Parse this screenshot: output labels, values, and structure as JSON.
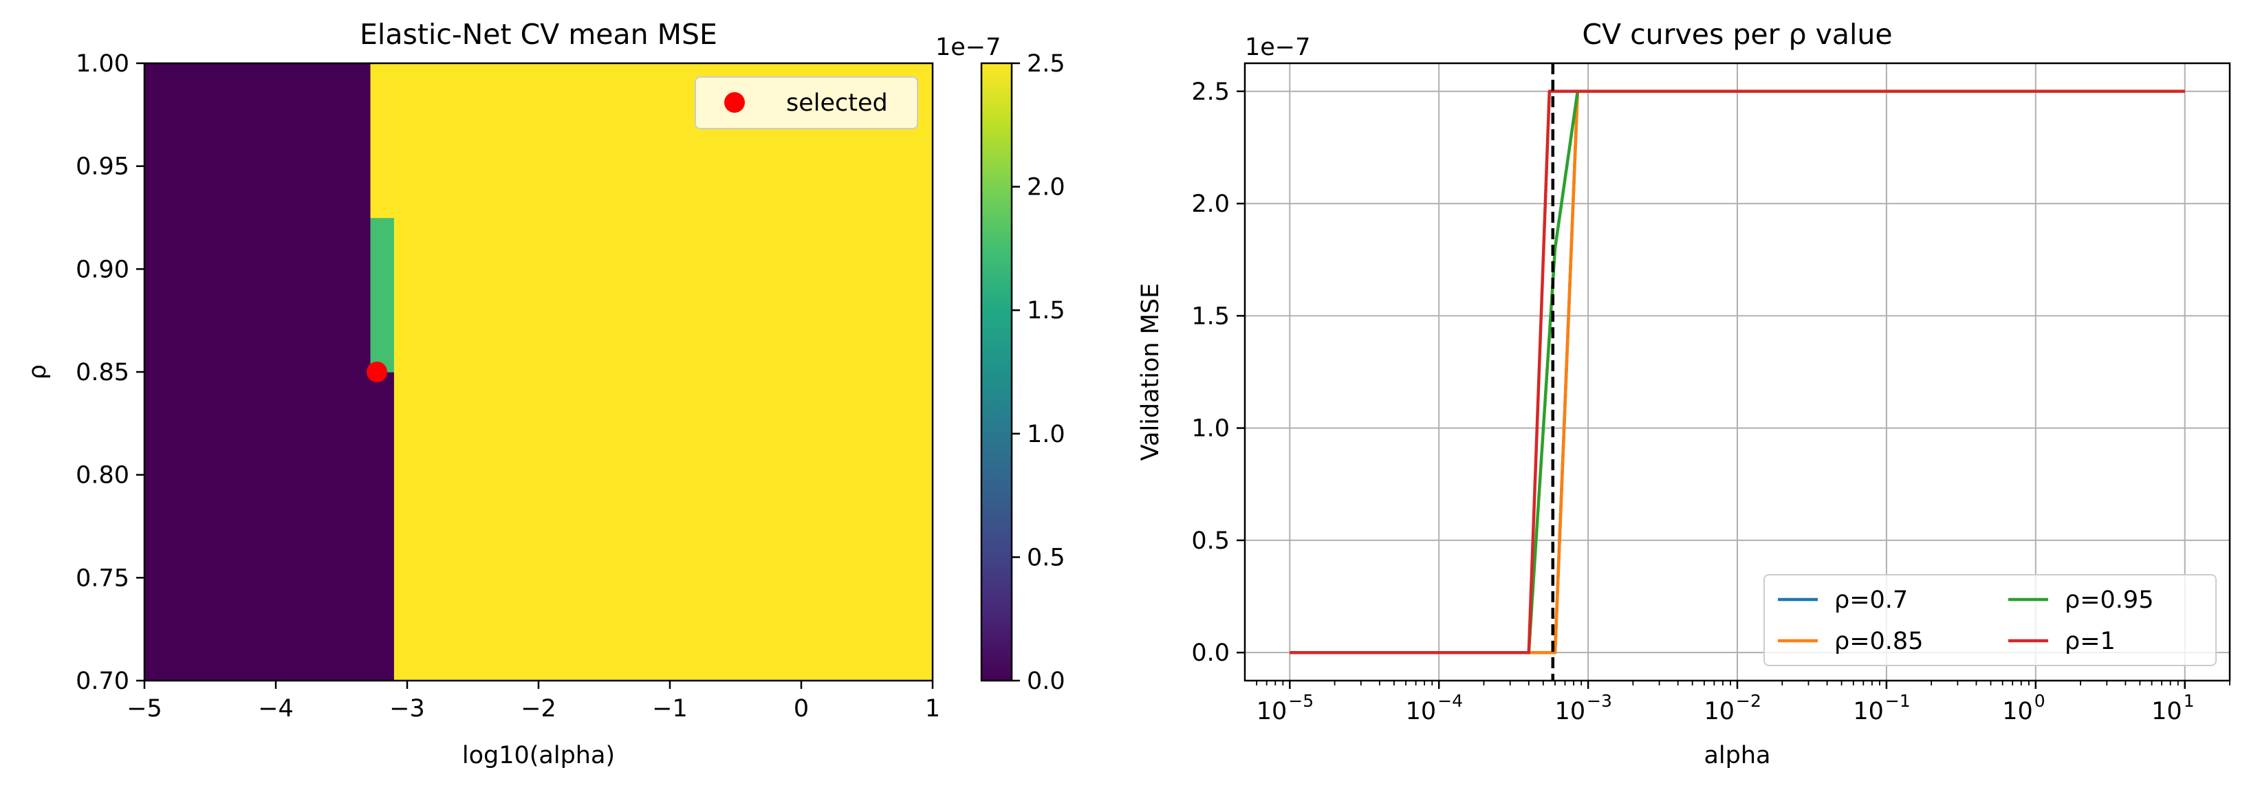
{
  "colors": {
    "viridis_low": "#440154",
    "viridis_mid": "#21918c",
    "viridis_high": "#fde725",
    "selected_marker": "#ff0000",
    "series": [
      "#1f77b4",
      "#ff7f0e",
      "#2ca02c",
      "#d62728"
    ],
    "vline": "#000000",
    "grid": "#b0b0b0"
  },
  "chart_data": [
    {
      "type": "heatmap",
      "title": "Elastic-Net CV mean MSE",
      "xlabel": "log10(alpha)",
      "ylabel": "ρ",
      "xlim": [
        -5,
        1
      ],
      "ylim": [
        0.7,
        1.0
      ],
      "x_ticks": [
        -5,
        -4,
        -3,
        -2,
        -1,
        0,
        1
      ],
      "x_tick_labels": [
        "−5",
        "−4",
        "−3",
        "−2",
        "−1",
        "0",
        "1"
      ],
      "y_ticks": [
        0.7,
        0.75,
        0.8,
        0.85,
        0.9,
        0.95,
        1.0
      ],
      "y_tick_labels": [
        "0.70",
        "0.75",
        "0.80",
        "0.85",
        "0.90",
        "0.95",
        "1.00"
      ],
      "cells": [
        {
          "x0": -5,
          "x1": -3.28,
          "y0": 0.7,
          "y1": 1.0,
          "value": 0.0
        },
        {
          "x0": -3.28,
          "x1": -3.1,
          "y0": 0.7,
          "y1": 0.85,
          "value": 0.0
        },
        {
          "x0": -3.28,
          "x1": -3.1,
          "y0": 0.85,
          "y1": 0.925,
          "value": 1.75
        },
        {
          "x0": -3.28,
          "x1": -3.1,
          "y0": 0.925,
          "y1": 1.0,
          "value": 2.5
        },
        {
          "x0": -3.1,
          "x1": 1,
          "y0": 0.7,
          "y1": 1.0,
          "value": 2.5
        }
      ],
      "selected_point": {
        "x": -3.23,
        "y": 0.85
      },
      "legend": {
        "position": "upper right",
        "entries": [
          "selected"
        ]
      },
      "colorbar": {
        "range": [
          0,
          2.5
        ],
        "ticks": [
          0,
          0.5,
          1.0,
          1.5,
          2.0,
          2.5
        ],
        "tick_labels": [
          "0.0",
          "0.5",
          "1.0",
          "1.5",
          "2.0",
          "2.5"
        ],
        "offset_label": "1e−7"
      }
    },
    {
      "type": "line",
      "title": "CV curves per ρ value",
      "xlabel": "alpha",
      "ylabel": "Validation MSE",
      "x_scale": "log",
      "xlim": [
        5e-06,
        20
      ],
      "ylim": [
        -0.125,
        2.625
      ],
      "y_offset_label": "1e−7",
      "x_ticks": [
        1e-05,
        0.0001,
        0.001,
        0.01,
        0.1,
        1,
        10
      ],
      "x_tick_bases": [
        "10",
        "10",
        "10",
        "10",
        "10",
        "10",
        "10"
      ],
      "x_tick_exps": [
        "−5",
        "−4",
        "−3",
        "−2",
        "−1",
        "0",
        "1"
      ],
      "y_ticks": [
        0,
        0.5,
        1.0,
        1.5,
        2.0,
        2.5
      ],
      "y_tick_labels": [
        "0.0",
        "0.5",
        "1.0",
        "1.5",
        "2.0",
        "2.5"
      ],
      "grid": true,
      "vline_x": 0.00058,
      "legend": {
        "position": "lower right",
        "columns": 2
      },
      "series": [
        {
          "name": "ρ=0.7",
          "x": [
            1e-05,
            0.0004,
            0.0006,
            0.00085,
            10
          ],
          "y": [
            0,
            0,
            0,
            2.5,
            2.5
          ]
        },
        {
          "name": "ρ=0.85",
          "x": [
            1e-05,
            0.0004,
            0.0006,
            0.00085,
            10
          ],
          "y": [
            0,
            0,
            0,
            2.5,
            2.5
          ]
        },
        {
          "name": "ρ=0.95",
          "x": [
            1e-05,
            0.0004,
            0.0006,
            0.00085,
            10
          ],
          "y": [
            0,
            0,
            1.8,
            2.5,
            2.5
          ]
        },
        {
          "name": "ρ=1",
          "x": [
            1e-05,
            0.0004,
            0.00055,
            0.00085,
            10
          ],
          "y": [
            0,
            0,
            2.5,
            2.5,
            2.5
          ]
        }
      ]
    }
  ]
}
